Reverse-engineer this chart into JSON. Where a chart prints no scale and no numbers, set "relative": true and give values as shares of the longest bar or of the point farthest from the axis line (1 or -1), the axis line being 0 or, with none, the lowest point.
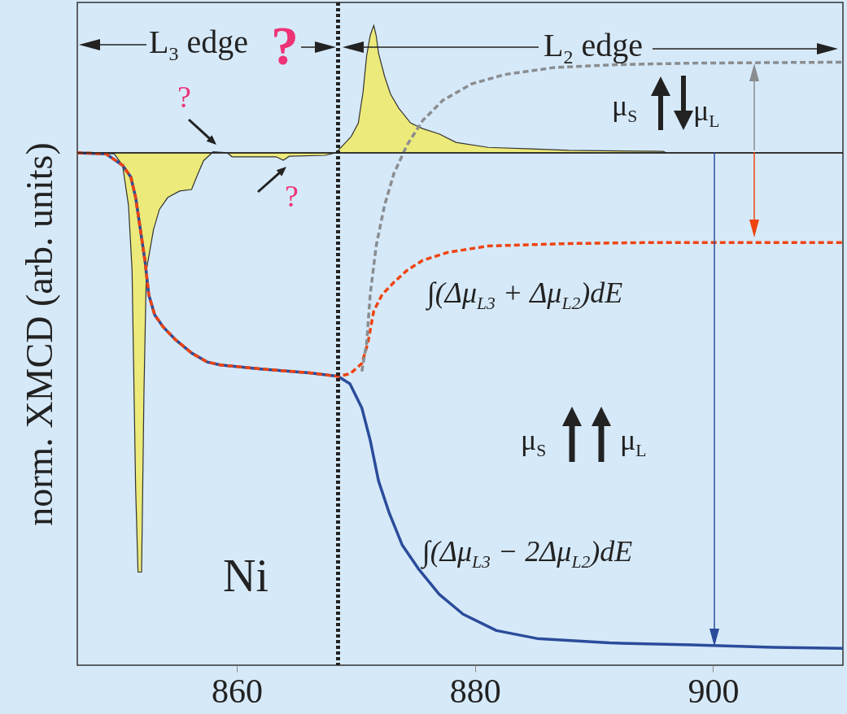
{
  "chart_data": {
    "type": "line",
    "relative": true,
    "ylabel": "norm. XMCD (arb. units)",
    "xlim": [
      846.6,
      910.9
    ],
    "xticks": [
      860,
      880,
      900
    ],
    "series": [
      {
        "type": "area",
        "color": "#ecea7a",
        "x": [
          846.6,
          849.7,
          850.4,
          850.9,
          851.2,
          851.5,
          851.7,
          852.0,
          852.2,
          852.4,
          853.0,
          853.5,
          854.2,
          855.2,
          856.2,
          856.7,
          857.2,
          858.0,
          859.2,
          859.6,
          863.3,
          863.9,
          864.4,
          867.4,
          868.3,
          868.9,
          869.6,
          870.2,
          870.6,
          870.9,
          871.2,
          871.5,
          871.7,
          871.9,
          872.4,
          872.9,
          873.6,
          874.6,
          875.6,
          877.0,
          878.4,
          881.1,
          884.8,
          887.9,
          895.8,
          896.1,
          910.9
        ],
        "values": [
          0,
          -0.002,
          -0.025,
          -0.106,
          -0.237,
          -0.678,
          -0.846,
          -0.846,
          -0.482,
          -0.237,
          -0.155,
          -0.114,
          -0.09,
          -0.077,
          -0.074,
          -0.044,
          -0.016,
          0.002,
          0,
          -0.008,
          -0.008,
          -0.015,
          -0.007,
          -0.005,
          0,
          0.015,
          0.033,
          0.06,
          0.123,
          0.196,
          0.237,
          0.257,
          0.237,
          0.201,
          0.155,
          0.119,
          0.09,
          0.06,
          0.049,
          0.038,
          0.021,
          0.011,
          0.008,
          0.005,
          0.003,
          0,
          0
        ]
      },
      {
        "type": "line",
        "color": "#2b4c9b",
        "line_style": "solid",
        "x": [
          846.6,
          849.0,
          850.4,
          851.1,
          851.5,
          851.9,
          852.3,
          852.6,
          853.1,
          853.8,
          854.8,
          856.2,
          857.5,
          858.6,
          862.0,
          866.1,
          868.5,
          869.5,
          870.5,
          871.2,
          871.9,
          872.8,
          873.9,
          875.3,
          877.0,
          879.0,
          881.8,
          885.2,
          891.3,
          898.2,
          905.0,
          910.9
        ],
        "values": [
          0,
          -0.002,
          -0.025,
          -0.049,
          -0.09,
          -0.155,
          -0.221,
          -0.286,
          -0.327,
          -0.351,
          -0.376,
          -0.404,
          -0.422,
          -0.428,
          -0.436,
          -0.444,
          -0.451,
          -0.466,
          -0.515,
          -0.58,
          -0.662,
          -0.727,
          -0.792,
          -0.841,
          -0.891,
          -0.931,
          -0.964,
          -0.98,
          -0.989,
          -0.993,
          -0.998,
          -1
        ]
      },
      {
        "type": "line",
        "color": "#ee4411",
        "line_style": "dashed",
        "x": [
          846.6,
          849.0,
          850.4,
          851.1,
          851.5,
          851.9,
          852.3,
          852.6,
          853.1,
          853.8,
          854.8,
          856.2,
          857.5,
          858.6,
          862.0,
          866.1,
          868.5,
          869.5,
          870.5,
          871.0,
          871.5,
          872.2,
          873.2,
          874.3,
          875.6,
          877.7,
          881.1,
          887.9,
          894.7,
          910.9
        ],
        "values": [
          0,
          -0.002,
          -0.025,
          -0.049,
          -0.09,
          -0.155,
          -0.221,
          -0.286,
          -0.327,
          -0.351,
          -0.376,
          -0.404,
          -0.422,
          -0.428,
          -0.436,
          -0.444,
          -0.451,
          -0.446,
          -0.425,
          -0.384,
          -0.319,
          -0.286,
          -0.261,
          -0.237,
          -0.217,
          -0.201,
          -0.188,
          -0.183,
          -0.181,
          -0.181
        ]
      },
      {
        "type": "line",
        "color": "#8a8d90",
        "line_style": "dashed",
        "x": [
          870.5,
          870.9,
          871.2,
          871.7,
          872.4,
          873.2,
          874.3,
          875.6,
          877.3,
          879.7,
          882.5,
          886.6,
          892.0,
          898.2,
          910.9
        ],
        "values": [
          -0.441,
          -0.384,
          -0.286,
          -0.188,
          -0.106,
          -0.041,
          0.016,
          0.065,
          0.106,
          0.139,
          0.158,
          0.172,
          0.178,
          0.181,
          0.183
        ]
      }
    ],
    "ref_lines": [
      {
        "axis": "x",
        "value": 868.5,
        "color": "#222222",
        "line_style": "dotted"
      }
    ],
    "annotations": [
      "L$_{3}$ edge",
      "?",
      "L$_{2}$ edge",
      "?",
      "?",
      "μ$_{S}$",
      "μ$_{L}$",
      "∫(Δμ$_{L3}$ + Δμ$_{L2}$)dE",
      "μ$_{S}$",
      "μ$_{L}$",
      "∫(Δμ$_{L3}$ − 2Δμ$_{L2}$)dE",
      "Ni"
    ]
  }
}
